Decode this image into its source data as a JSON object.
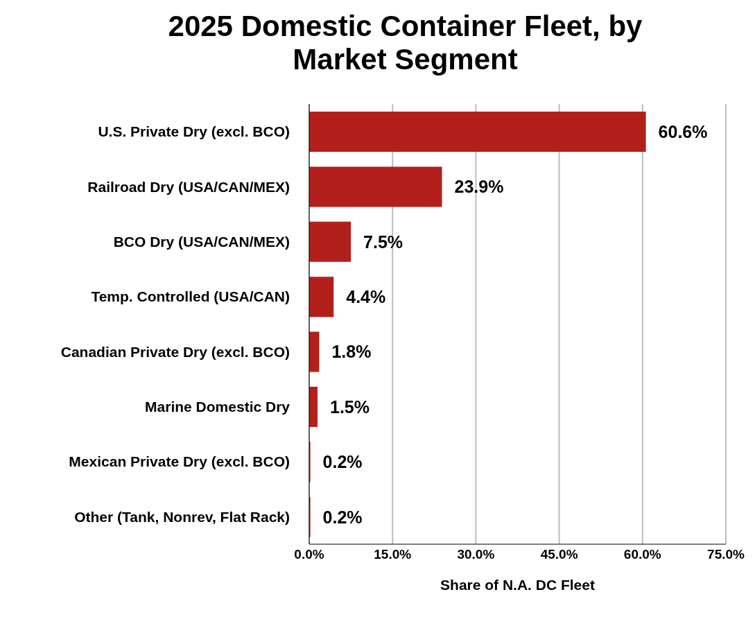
{
  "chart_data": {
    "type": "bar",
    "orientation": "horizontal",
    "title": "2025 Domestic Container Fleet, by Market Segment",
    "xlabel": "Share of N.A. DC Fleet",
    "categories": [
      "U.S. Private Dry (excl. BCO)",
      "Railroad Dry (USA/CAN/MEX)",
      "BCO Dry (USA/CAN/MEX)",
      "Temp. Controlled (USA/CAN)",
      "Canadian Private Dry (excl. BCO)",
      "Marine Domestic Dry",
      "Mexican Private Dry (excl. BCO)",
      "Other (Tank, Nonrev, Flat Rack)"
    ],
    "values": [
      60.6,
      23.9,
      7.5,
      4.4,
      1.8,
      1.5,
      0.2,
      0.2
    ],
    "value_labels": [
      "60.6%",
      "23.9%",
      "7.5%",
      "4.4%",
      "1.8%",
      "1.5%",
      "0.2%",
      "0.2%"
    ],
    "color": "#b3201c",
    "xlim": [
      0,
      75
    ],
    "xticks": [
      {
        "value": 0,
        "label": "0.0%"
      },
      {
        "value": 15,
        "label": "15.0%"
      },
      {
        "value": 30,
        "label": "30.0%"
      },
      {
        "value": 45,
        "label": "45.0%"
      },
      {
        "value": 60,
        "label": "60.0%"
      },
      {
        "value": 75,
        "label": "75.0%"
      }
    ],
    "grid": "x",
    "legend": false
  }
}
